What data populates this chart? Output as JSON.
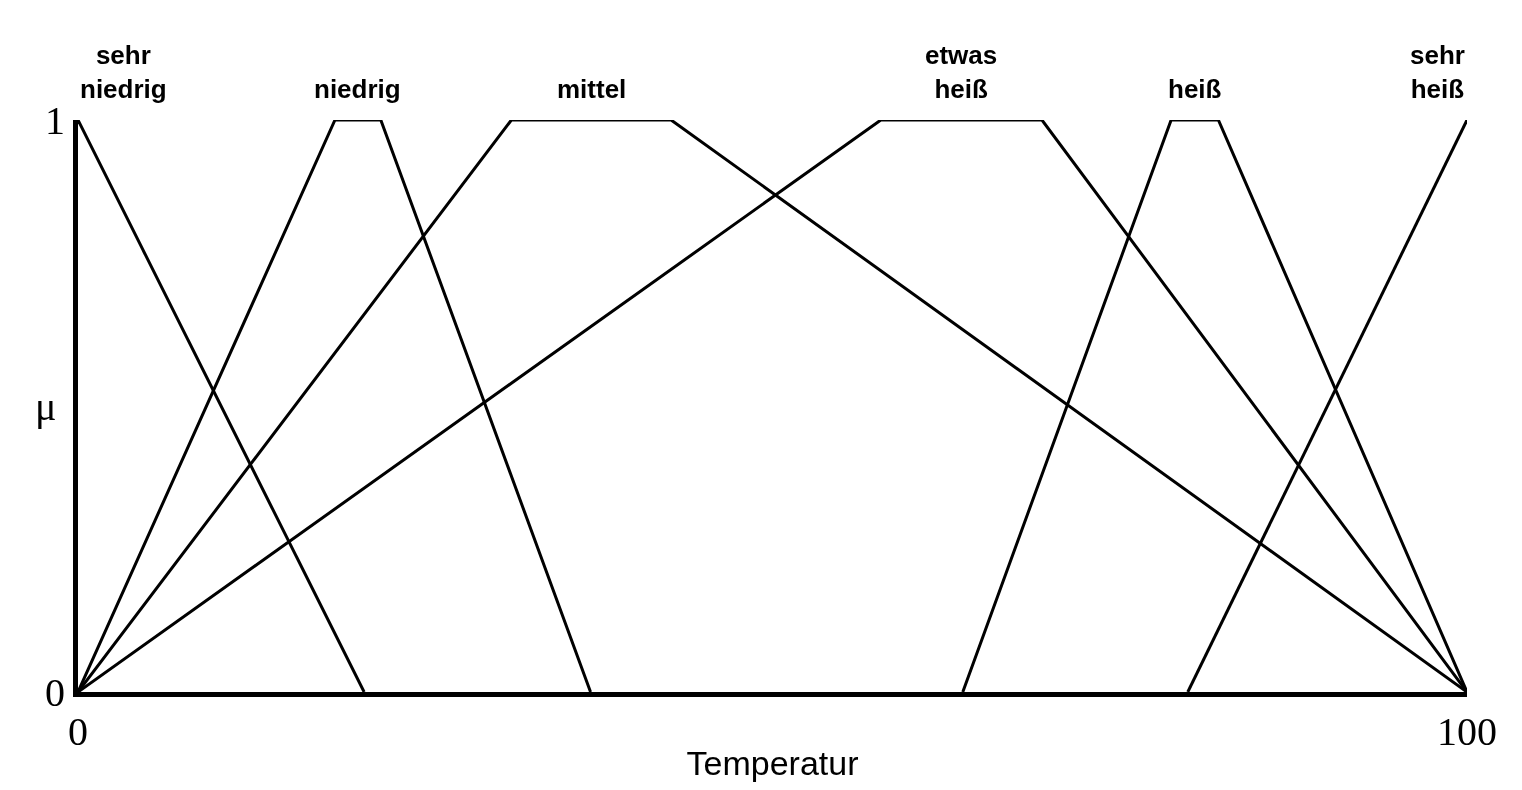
{
  "chart_data": {
    "type": "line",
    "xlabel": "Temperatur",
    "ylabel": "μ",
    "xlim": [
      0,
      100
    ],
    "ylim": [
      0,
      1
    ],
    "xticks": [
      0,
      100
    ],
    "yticks": [
      0,
      1
    ],
    "legend": false,
    "marker": "none",
    "line_style": "solid",
    "series": [
      {
        "name": "sehr niedrig",
        "color": "#000000",
        "x": [
          0,
          20.6
        ],
        "values": [
          1,
          0
        ]
      },
      {
        "name": "niedrig",
        "color": "#000000",
        "x": [
          0,
          18.5,
          21.8,
          36.9
        ],
        "values": [
          0,
          1,
          1,
          0
        ]
      },
      {
        "name": "mittel",
        "color": "#000000",
        "x": [
          0,
          31.2,
          42.7,
          100
        ],
        "values": [
          0,
          1,
          1,
          0
        ]
      },
      {
        "name": "etwas heiß",
        "color": "#000000",
        "x": [
          0,
          57.8,
          69.4,
          100
        ],
        "values": [
          0,
          1,
          1,
          0
        ]
      },
      {
        "name": "heiß",
        "color": "#000000",
        "x": [
          63.7,
          78.7,
          82.1,
          100
        ],
        "values": [
          0,
          1,
          1,
          0
        ]
      },
      {
        "name": "sehr heiß",
        "color": "#000000",
        "x": [
          79.9,
          100
        ],
        "values": [
          0,
          1
        ]
      }
    ]
  }
}
